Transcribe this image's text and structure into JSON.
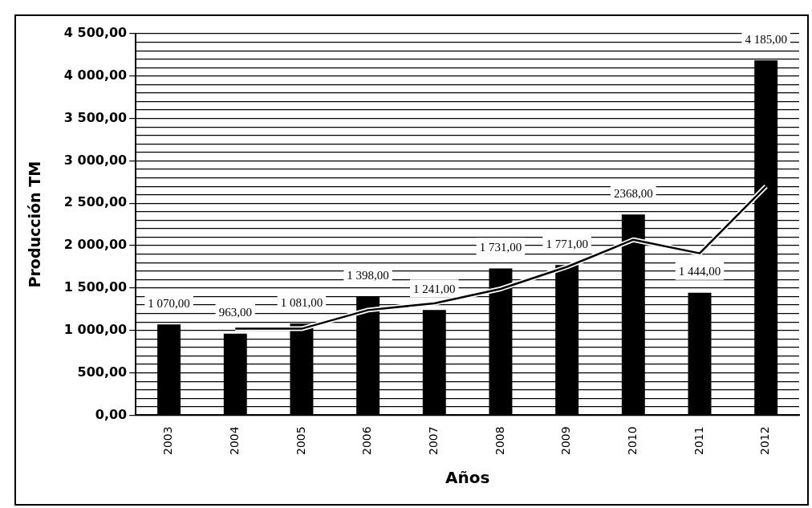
{
  "chart_data": {
    "type": "bar",
    "xlabel": "Años",
    "ylabel": "Producción TM",
    "categories": [
      "2003",
      "2004",
      "2005",
      "2006",
      "2007",
      "2008",
      "2009",
      "2010",
      "2011",
      "2012"
    ],
    "series": [
      {
        "color": "#000000",
        "values": [
          1070,
          963,
          1081,
          1398,
          1241,
          1731,
          1771,
          2368,
          1444,
          4185
        ],
        "value_labels": [
          "1 070,00",
          "963,00",
          "1 081,00",
          "1 398,00",
          "1 241,00",
          "1 731,00",
          "1 771,00",
          "2368,00",
          "1 444,00",
          "4 185,00"
        ]
      },
      {
        "type": "line",
        "color": "#000000",
        "values": [
          null,
          1020,
          1020,
          1240,
          1320,
          1490,
          1750,
          2070,
          1910,
          2700
        ]
      }
    ],
    "ylim": [
      0,
      4500
    ],
    "yticks": [
      {
        "value": 0,
        "label": "0,00"
      },
      {
        "value": 100,
        "label": null
      },
      {
        "value": 200,
        "label": null
      },
      {
        "value": 300,
        "label": null
      },
      {
        "value": 400,
        "label": null
      },
      {
        "value": 500,
        "label": "500,00"
      },
      {
        "value": 600,
        "label": null
      },
      {
        "value": 700,
        "label": null
      },
      {
        "value": 800,
        "label": null
      },
      {
        "value": 900,
        "label": null
      },
      {
        "value": 1000,
        "label": "1 000,00"
      },
      {
        "value": 1100,
        "label": null
      },
      {
        "value": 1200,
        "label": null
      },
      {
        "value": 1300,
        "label": null
      },
      {
        "value": 1400,
        "label": null
      },
      {
        "value": 1500,
        "label": "1 500,00"
      },
      {
        "value": 1600,
        "label": null
      },
      {
        "value": 1700,
        "label": null
      },
      {
        "value": 1800,
        "label": null
      },
      {
        "value": 1900,
        "label": null
      },
      {
        "value": 2000,
        "label": "2 000,00"
      },
      {
        "value": 2100,
        "label": null
      },
      {
        "value": 2200,
        "label": null
      },
      {
        "value": 2300,
        "label": null
      },
      {
        "value": 2400,
        "label": null
      },
      {
        "value": 2500,
        "label": "2 500,00"
      },
      {
        "value": 2600,
        "label": null
      },
      {
        "value": 2700,
        "label": null
      },
      {
        "value": 2800,
        "label": null
      },
      {
        "value": 2900,
        "label": null
      },
      {
        "value": 3000,
        "label": "3 000,00"
      },
      {
        "value": 3100,
        "label": null
      },
      {
        "value": 3200,
        "label": null
      },
      {
        "value": 3300,
        "label": null
      },
      {
        "value": 3400,
        "label": null
      },
      {
        "value": 3500,
        "label": "3 500,00"
      },
      {
        "value": 3600,
        "label": null
      },
      {
        "value": 3700,
        "label": null
      },
      {
        "value": 3800,
        "label": null
      },
      {
        "value": 3900,
        "label": null
      },
      {
        "value": 4000,
        "label": "4 000,00"
      },
      {
        "value": 4100,
        "label": null
      },
      {
        "value": 4200,
        "label": null
      },
      {
        "value": 4300,
        "label": null
      },
      {
        "value": 4400,
        "label": null
      },
      {
        "value": 4500,
        "label": "4 500,00"
      }
    ],
    "grid": "y",
    "legend": false,
    "marker": "none",
    "line_style": "solid"
  }
}
